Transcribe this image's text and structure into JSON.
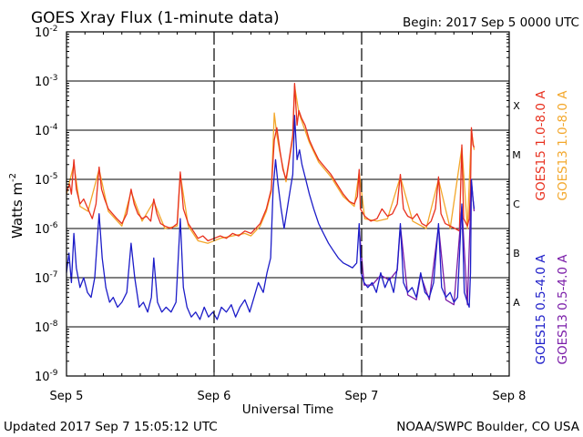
{
  "chart_data": {
    "type": "line",
    "title": "GOES Xray Flux (1-minute data)",
    "begin_label": "Begin:  2017 Sep 5 0000 UTC",
    "updated_label": "Updated 2017 Sep  7 15:05:12 UTC",
    "credit_label": "NOAA/SWPC Boulder, CO USA",
    "xlabel": "Universal Time",
    "ylabel": "Watts m",
    "ylabel_superscript": "-2",
    "y_scale": "log",
    "ylim": [
      1e-09,
      0.01
    ],
    "xlim": [
      0,
      72
    ],
    "x_unit": "hours since 2017 Sep 5 0000 UTC",
    "grid": "horizontal lines at 1e-8 .. 1e-3",
    "x_ticks": [
      {
        "x": 0,
        "label": "Sep 5"
      },
      {
        "x": 24,
        "label": "Sep 6"
      },
      {
        "x": 48,
        "label": "Sep 7"
      },
      {
        "x": 72,
        "label": "Sep 8"
      }
    ],
    "y_ticks": [
      {
        "exp": -2,
        "label": "10",
        "sup": "-2"
      },
      {
        "exp": -3,
        "label": "10",
        "sup": "-3"
      },
      {
        "exp": -4,
        "label": "10",
        "sup": "-4"
      },
      {
        "exp": -5,
        "label": "10",
        "sup": "-5"
      },
      {
        "exp": -6,
        "label": "10",
        "sup": "-6"
      },
      {
        "exp": -7,
        "label": "10",
        "sup": "-7"
      },
      {
        "exp": -8,
        "label": "10",
        "sup": "-8"
      },
      {
        "exp": -9,
        "label": "10",
        "sup": "-9"
      }
    ],
    "flare_classes": [
      {
        "label": "X",
        "exp": -3.5
      },
      {
        "label": "M",
        "exp": -4.5
      },
      {
        "label": "C",
        "exp": -5.5
      },
      {
        "label": "B",
        "exp": -6.5
      },
      {
        "label": "A",
        "exp": -7.5
      }
    ],
    "series": [
      {
        "name": "GOES15 1.0-8.0 A",
        "color": "#e8301e",
        "points": [
          [
            0,
            -5.25
          ],
          [
            0.5,
            -5.1
          ],
          [
            0.8,
            -5.3
          ],
          [
            1.2,
            -4.6
          ],
          [
            1.6,
            -5.2
          ],
          [
            2.2,
            -5.5
          ],
          [
            2.8,
            -5.4
          ],
          [
            3.5,
            -5.6
          ],
          [
            4.2,
            -5.8
          ],
          [
            4.8,
            -5.5
          ],
          [
            5.3,
            -4.75
          ],
          [
            5.7,
            -5.2
          ],
          [
            6.2,
            -5.4
          ],
          [
            6.8,
            -5.6
          ],
          [
            7.5,
            -5.7
          ],
          [
            8.2,
            -5.8
          ],
          [
            9,
            -5.9
          ],
          [
            9.8,
            -5.7
          ],
          [
            10.5,
            -5.2
          ],
          [
            11,
            -5.5
          ],
          [
            11.6,
            -5.7
          ],
          [
            12.3,
            -5.8
          ],
          [
            13,
            -5.75
          ],
          [
            13.7,
            -5.85
          ],
          [
            14.2,
            -5.4
          ],
          [
            14.7,
            -5.7
          ],
          [
            15.3,
            -5.9
          ],
          [
            16,
            -5.95
          ],
          [
            17,
            -6.0
          ],
          [
            18,
            -5.9
          ],
          [
            18.5,
            -4.85
          ],
          [
            19,
            -5.6
          ],
          [
            19.8,
            -5.9
          ],
          [
            20.6,
            -6.05
          ],
          [
            21.4,
            -6.2
          ],
          [
            22.2,
            -6.15
          ],
          [
            23,
            -6.25
          ],
          [
            24,
            -6.2
          ],
          [
            25,
            -6.15
          ],
          [
            26,
            -6.2
          ],
          [
            27,
            -6.1
          ],
          [
            28,
            -6.15
          ],
          [
            29,
            -6.05
          ],
          [
            30,
            -6.1
          ],
          [
            31.5,
            -5.9
          ],
          [
            32.5,
            -5.6
          ],
          [
            33.3,
            -5.2
          ],
          [
            33.8,
            -4.2
          ],
          [
            34.2,
            -3.95
          ],
          [
            34.7,
            -4.4
          ],
          [
            35.2,
            -4.8
          ],
          [
            35.7,
            -5.0
          ],
          [
            36.2,
            -4.6
          ],
          [
            36.8,
            -4.1
          ],
          [
            37.1,
            -3.05
          ],
          [
            37.5,
            -3.9
          ],
          [
            37.8,
            -3.6
          ],
          [
            38.2,
            -3.75
          ],
          [
            38.8,
            -3.9
          ],
          [
            39.5,
            -4.2
          ],
          [
            40.2,
            -4.4
          ],
          [
            41,
            -4.6
          ],
          [
            42,
            -4.75
          ],
          [
            43,
            -4.9
          ],
          [
            44,
            -5.1
          ],
          [
            45,
            -5.3
          ],
          [
            46,
            -5.45
          ],
          [
            46.8,
            -5.5
          ],
          [
            47.3,
            -5.35
          ],
          [
            47.6,
            -4.8
          ],
          [
            47.8,
            -5.6
          ],
          [
            48.5,
            -5.75
          ],
          [
            49.5,
            -5.85
          ],
          [
            50.5,
            -5.8
          ],
          [
            51.3,
            -5.6
          ],
          [
            52.2,
            -5.75
          ],
          [
            53,
            -5.7
          ],
          [
            53.8,
            -5.5
          ],
          [
            54.3,
            -4.9
          ],
          [
            54.8,
            -5.6
          ],
          [
            55.5,
            -5.75
          ],
          [
            56.3,
            -5.8
          ],
          [
            57,
            -5.7
          ],
          [
            57.8,
            -5.9
          ],
          [
            58.5,
            -5.95
          ],
          [
            59.3,
            -5.85
          ],
          [
            60,
            -5.6
          ],
          [
            60.5,
            -4.95
          ],
          [
            60.9,
            -5.7
          ],
          [
            61.6,
            -5.9
          ],
          [
            62.4,
            -5.95
          ],
          [
            63.2,
            -6.0
          ],
          [
            63.9,
            -6.05
          ],
          [
            64.3,
            -4.3
          ],
          [
            64.6,
            -5.8
          ],
          [
            65.2,
            -5.95
          ],
          [
            65.5,
            -5.8
          ],
          [
            65.7,
            -5.2
          ],
          [
            65.85,
            -3.95
          ],
          [
            66.1,
            -4.3
          ],
          [
            66.3,
            -4.35
          ]
        ]
      },
      {
        "name": "GOES13 1.0-8.0 A",
        "color": "#f3a72b",
        "points": [
          [
            0,
            -5.3
          ],
          [
            1.2,
            -4.7
          ],
          [
            2.2,
            -5.55
          ],
          [
            3.5,
            -5.65
          ],
          [
            5.3,
            -4.8
          ],
          [
            6.8,
            -5.65
          ],
          [
            9,
            -5.95
          ],
          [
            10.5,
            -5.25
          ],
          [
            12.3,
            -5.85
          ],
          [
            14.2,
            -5.45
          ],
          [
            16,
            -6.0
          ],
          [
            18,
            -5.95
          ],
          [
            18.5,
            -4.9
          ],
          [
            19.8,
            -5.95
          ],
          [
            21.4,
            -6.25
          ],
          [
            23,
            -6.3
          ],
          [
            25,
            -6.2
          ],
          [
            27,
            -6.15
          ],
          [
            29,
            -6.1
          ],
          [
            30,
            -6.15
          ],
          [
            31.5,
            -5.95
          ],
          [
            32.5,
            -5.65
          ],
          [
            33.3,
            -5.25
          ],
          [
            33.8,
            -3.65
          ],
          [
            34.2,
            -4.1
          ],
          [
            34.7,
            -4.45
          ],
          [
            35.7,
            -5.05
          ],
          [
            36.8,
            -4.15
          ],
          [
            37.1,
            -3.1
          ],
          [
            37.8,
            -3.65
          ],
          [
            39.5,
            -4.25
          ],
          [
            41,
            -4.65
          ],
          [
            43,
            -4.95
          ],
          [
            45,
            -5.35
          ],
          [
            46.8,
            -5.55
          ],
          [
            47.6,
            -4.85
          ],
          [
            48.5,
            -5.8
          ],
          [
            50.5,
            -5.85
          ],
          [
            52.2,
            -5.8
          ],
          [
            54.3,
            -4.95
          ],
          [
            56.3,
            -5.85
          ],
          [
            58.5,
            -6.0
          ],
          [
            60.5,
            -5.0
          ],
          [
            62.4,
            -6.0
          ],
          [
            64.3,
            -4.35
          ],
          [
            65.2,
            -6.0
          ],
          [
            65.85,
            -4.0
          ],
          [
            66.3,
            -4.4
          ]
        ]
      },
      {
        "name": "GOES15 0.5-4.0 A",
        "color": "#1c1cc8",
        "points": [
          [
            0,
            -6.9
          ],
          [
            0.4,
            -6.5
          ],
          [
            0.8,
            -7.1
          ],
          [
            1.2,
            -6.1
          ],
          [
            1.6,
            -6.8
          ],
          [
            2.2,
            -7.2
          ],
          [
            2.8,
            -7.0
          ],
          [
            3.4,
            -7.3
          ],
          [
            4,
            -7.4
          ],
          [
            4.6,
            -7.0
          ],
          [
            5.3,
            -5.7
          ],
          [
            5.8,
            -6.6
          ],
          [
            6.4,
            -7.2
          ],
          [
            7,
            -7.5
          ],
          [
            7.6,
            -7.4
          ],
          [
            8.3,
            -7.6
          ],
          [
            9,
            -7.5
          ],
          [
            9.8,
            -7.3
          ],
          [
            10.5,
            -6.3
          ],
          [
            11.1,
            -7.0
          ],
          [
            11.8,
            -7.6
          ],
          [
            12.5,
            -7.5
          ],
          [
            13.2,
            -7.7
          ],
          [
            13.8,
            -7.4
          ],
          [
            14.2,
            -6.6
          ],
          [
            14.8,
            -7.5
          ],
          [
            15.5,
            -7.7
          ],
          [
            16.2,
            -7.6
          ],
          [
            17,
            -7.7
          ],
          [
            17.8,
            -7.5
          ],
          [
            18.5,
            -5.8
          ],
          [
            19,
            -7.2
          ],
          [
            19.6,
            -7.6
          ],
          [
            20.3,
            -7.8
          ],
          [
            21,
            -7.7
          ],
          [
            21.7,
            -7.85
          ],
          [
            22.4,
            -7.6
          ],
          [
            23.1,
            -7.8
          ],
          [
            23.8,
            -7.7
          ],
          [
            24.5,
            -7.85
          ],
          [
            25.2,
            -7.6
          ],
          [
            26,
            -7.7
          ],
          [
            26.8,
            -7.55
          ],
          [
            27.5,
            -7.8
          ],
          [
            28.2,
            -7.6
          ],
          [
            29,
            -7.45
          ],
          [
            29.8,
            -7.7
          ],
          [
            30.5,
            -7.4
          ],
          [
            31.2,
            -7.1
          ],
          [
            32,
            -7.3
          ],
          [
            32.6,
            -6.9
          ],
          [
            33.2,
            -6.6
          ],
          [
            33.6,
            -5.2
          ],
          [
            34,
            -4.6
          ],
          [
            34.4,
            -5.1
          ],
          [
            34.9,
            -5.6
          ],
          [
            35.4,
            -6.0
          ],
          [
            35.9,
            -5.6
          ],
          [
            36.4,
            -5.2
          ],
          [
            36.8,
            -4.9
          ],
          [
            37.1,
            -3.7
          ],
          [
            37.5,
            -4.6
          ],
          [
            37.9,
            -4.4
          ],
          [
            38.3,
            -4.7
          ],
          [
            38.9,
            -5.0
          ],
          [
            39.5,
            -5.3
          ],
          [
            40.2,
            -5.6
          ],
          [
            41,
            -5.9
          ],
          [
            41.8,
            -6.1
          ],
          [
            42.6,
            -6.3
          ],
          [
            43.4,
            -6.45
          ],
          [
            44.2,
            -6.6
          ],
          [
            45,
            -6.7
          ],
          [
            45.8,
            -6.75
          ],
          [
            46.5,
            -6.8
          ],
          [
            47.2,
            -6.7
          ],
          [
            47.6,
            -5.9
          ],
          [
            47.9,
            -6.9
          ],
          [
            48.4,
            -7.1
          ],
          [
            49,
            -7.2
          ],
          [
            49.7,
            -7.1
          ],
          [
            50.4,
            -7.3
          ],
          [
            51.1,
            -6.9
          ],
          [
            51.8,
            -7.2
          ],
          [
            52.5,
            -7.0
          ],
          [
            53.2,
            -7.3
          ],
          [
            53.8,
            -6.8
          ],
          [
            54.3,
            -5.9
          ],
          [
            54.8,
            -7.1
          ],
          [
            55.5,
            -7.3
          ],
          [
            56.2,
            -7.2
          ],
          [
            56.9,
            -7.4
          ],
          [
            57.6,
            -6.9
          ],
          [
            58.3,
            -7.3
          ],
          [
            59,
            -7.4
          ],
          [
            59.7,
            -7.1
          ],
          [
            60.5,
            -5.9
          ],
          [
            61,
            -7.2
          ],
          [
            61.7,
            -7.4
          ],
          [
            62.4,
            -7.3
          ],
          [
            63,
            -7.5
          ],
          [
            63.6,
            -7.4
          ],
          [
            64.3,
            -5.5
          ],
          [
            64.7,
            -7.3
          ],
          [
            65.2,
            -7.5
          ],
          [
            65.5,
            -7.6
          ],
          [
            65.7,
            -6.9
          ],
          [
            65.85,
            -5.0
          ],
          [
            66.1,
            -5.4
          ],
          [
            66.3,
            -5.6
          ]
        ]
      },
      {
        "name": "GOES13 0.5-4.0 A",
        "color": "#7a1ca8",
        "points": [
          [
            47.6,
            -6.0
          ],
          [
            48.4,
            -7.15
          ],
          [
            49.7,
            -7.15
          ],
          [
            51.1,
            -6.95
          ],
          [
            52.5,
            -7.05
          ],
          [
            53.8,
            -6.85
          ],
          [
            54.3,
            -5.95
          ],
          [
            55.5,
            -7.35
          ],
          [
            56.9,
            -7.45
          ],
          [
            57.6,
            -6.95
          ],
          [
            59,
            -7.45
          ],
          [
            60.5,
            -5.95
          ],
          [
            61.7,
            -7.45
          ],
          [
            63,
            -7.55
          ],
          [
            64.3,
            -5.55
          ],
          [
            65.2,
            -7.55
          ],
          [
            65.85,
            -5.05
          ],
          [
            66.3,
            -5.65
          ]
        ]
      }
    ]
  }
}
